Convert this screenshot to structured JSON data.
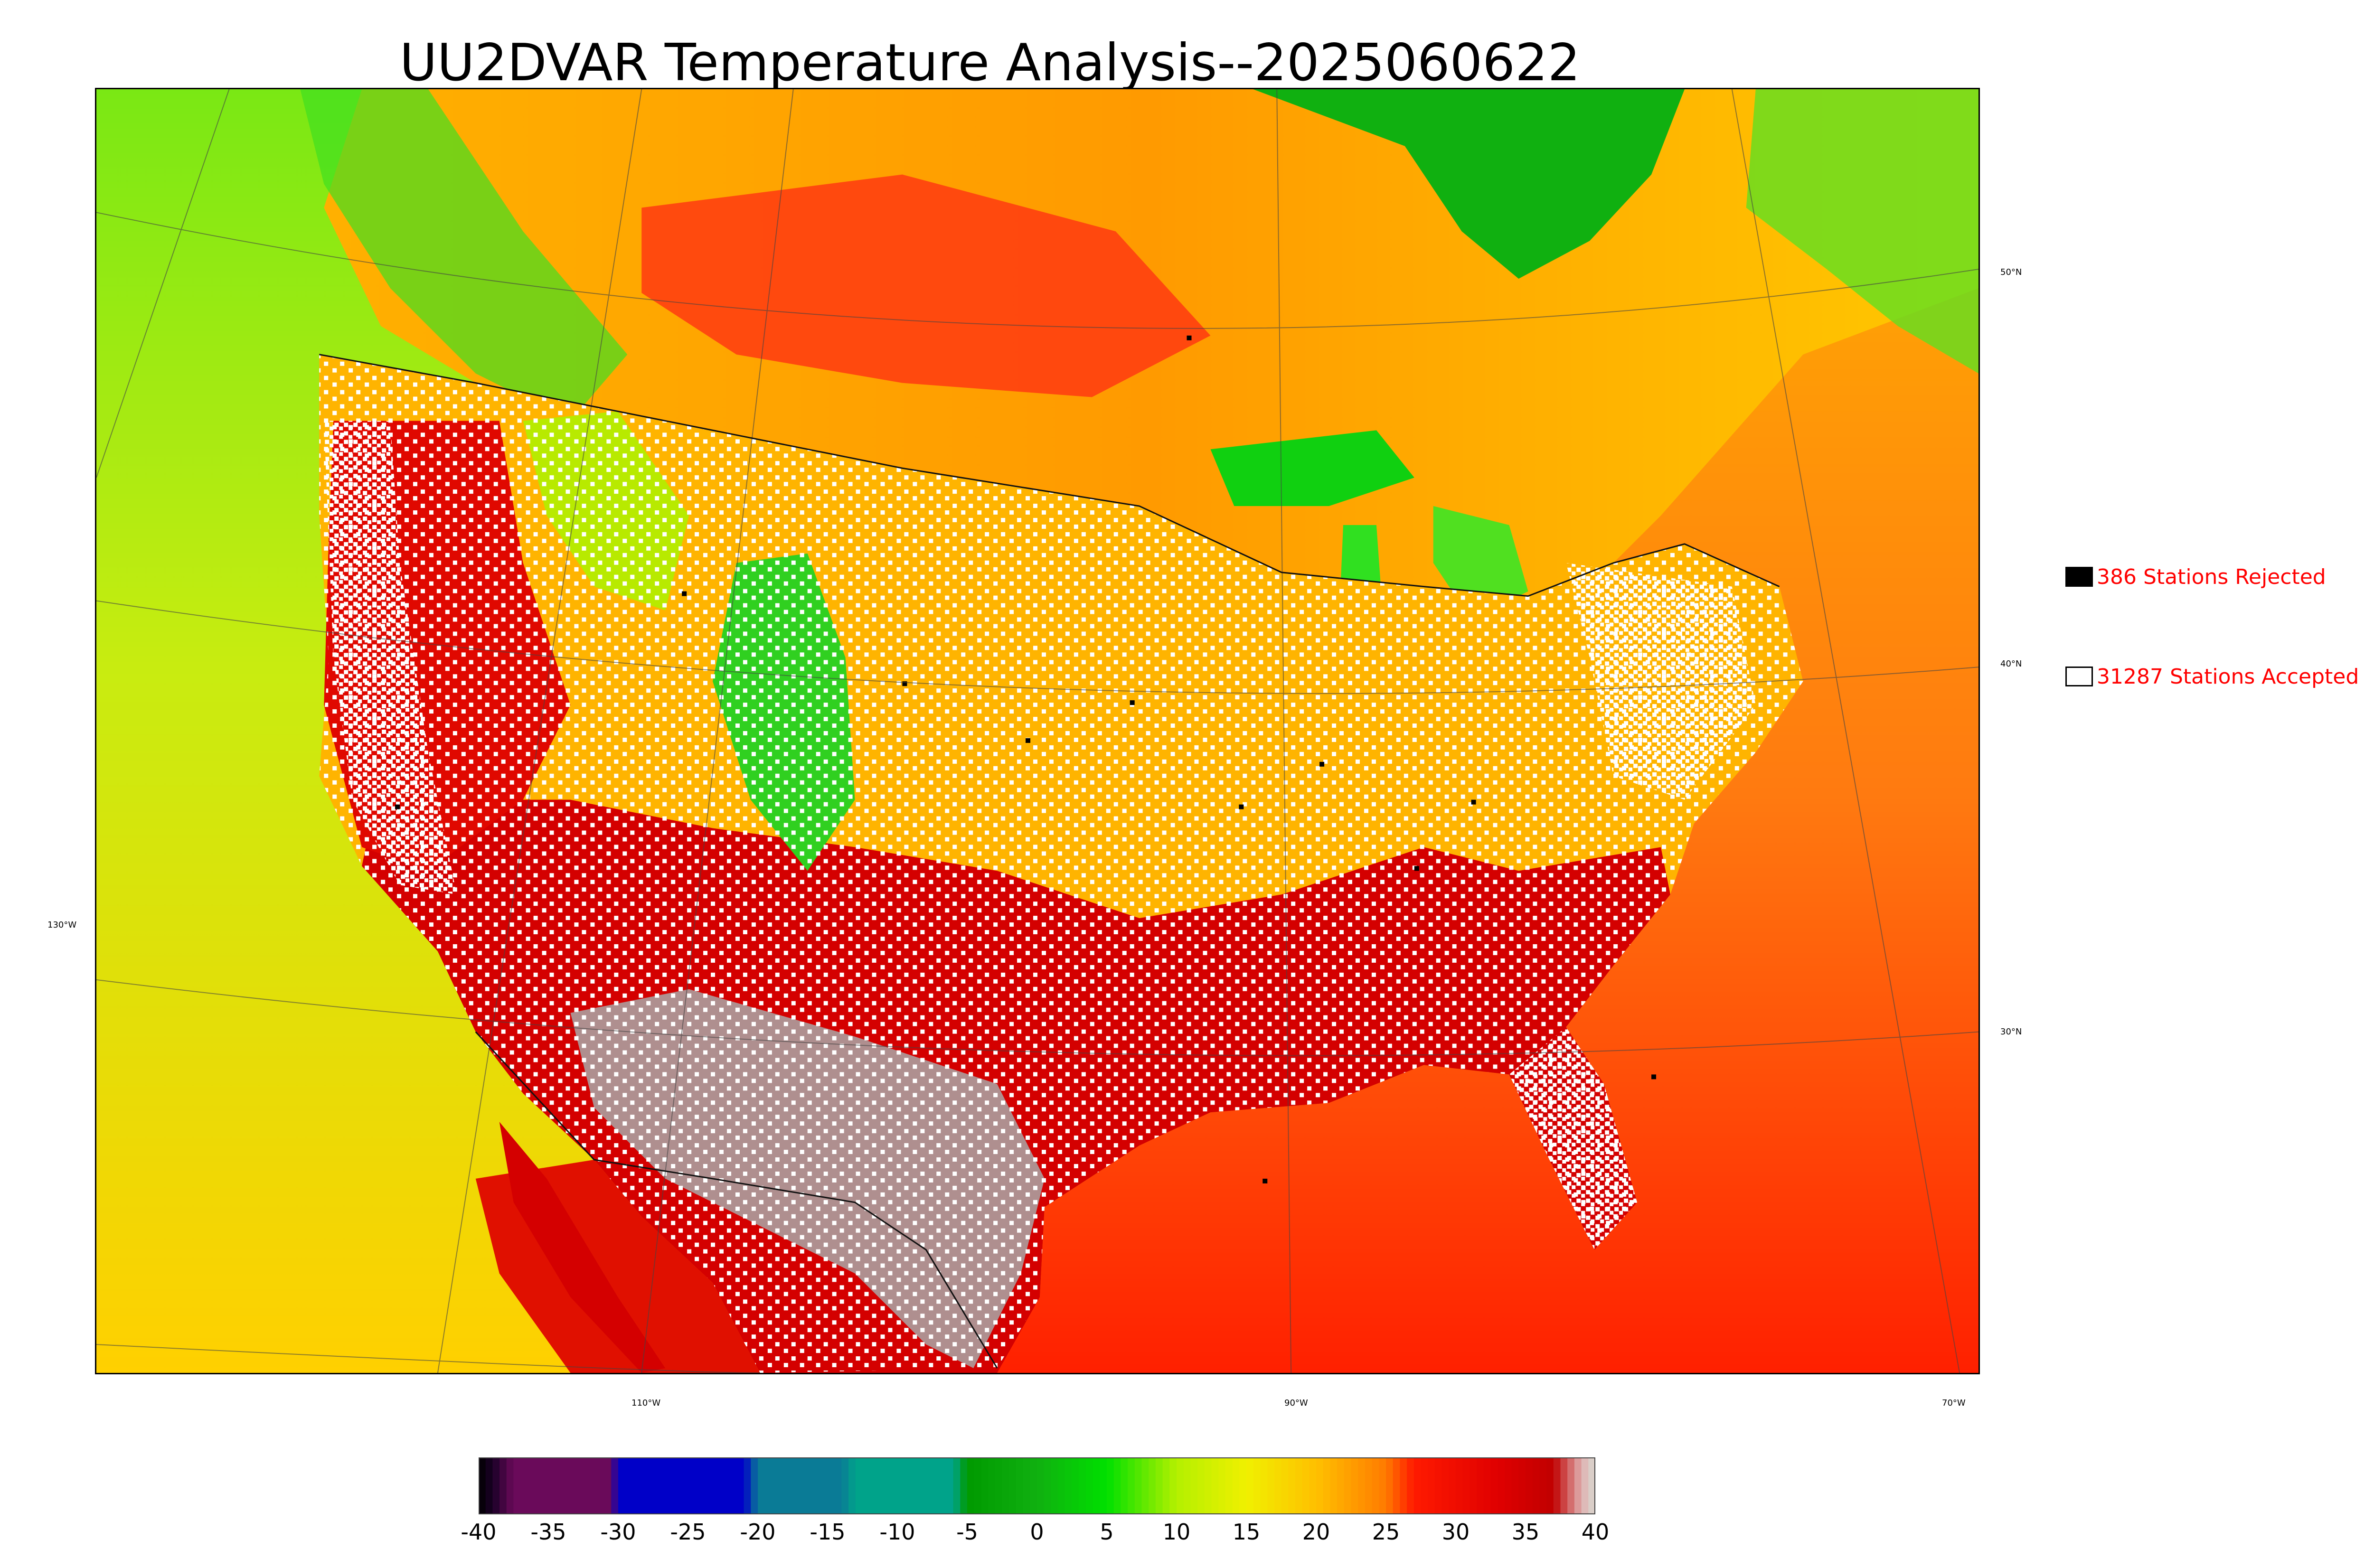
{
  "title": "UU2DVAR Temperature Analysis--2025060622",
  "map": {
    "longitude_labels": [
      "110°W",
      "90°W",
      "70°W"
    ],
    "latitude_labels": [
      "50°N",
      "40°N",
      "30°N"
    ],
    "west_label": "130°W",
    "colors": {
      "ocean_pacific": "#c8ec10",
      "ocean_atlantic": "#ff8a14",
      "gulf": "#ff2a00",
      "canada_north": "#ffb400",
      "hudson_bay": "#10b010",
      "hot_south": "#d40000",
      "mountains_green": "#30e020",
      "high_desert_gray": "#a8a8a8"
    }
  },
  "legend": {
    "rejected": {
      "label": "386 Stations Rejected",
      "swatch": "#000000"
    },
    "accepted": {
      "label": "31287 Stations Accepted",
      "swatch": "#ffffff"
    }
  },
  "colorbar": {
    "ticks": [
      "-40",
      "-35",
      "-30",
      "-25",
      "-20",
      "-15",
      "-10",
      "-5",
      "0",
      "5",
      "10",
      "15",
      "20",
      "25",
      "30",
      "35",
      "40"
    ],
    "range": [
      -40,
      40
    ],
    "stops": [
      {
        "v": -40,
        "c": "#000000"
      },
      {
        "v": -39,
        "c": "#1a0026"
      },
      {
        "v": -37.5,
        "c": "#6a0a5a"
      },
      {
        "v": -30.5,
        "c": "#6a0a5a"
      },
      {
        "v": -30,
        "c": "#0000c8"
      },
      {
        "v": -21,
        "c": "#0000c8"
      },
      {
        "v": -20,
        "c": "#0a7b96"
      },
      {
        "v": -14,
        "c": "#0a7b96"
      },
      {
        "v": -13,
        "c": "#00a38a"
      },
      {
        "v": -6,
        "c": "#00a38a"
      },
      {
        "v": -5,
        "c": "#009a00"
      },
      {
        "v": 0,
        "c": "#10b010"
      },
      {
        "v": 5,
        "c": "#00e000"
      },
      {
        "v": 10,
        "c": "#b4f000"
      },
      {
        "v": 15,
        "c": "#f0f000"
      },
      {
        "v": 20,
        "c": "#ffc000"
      },
      {
        "v": 25,
        "c": "#ff7a00"
      },
      {
        "v": 27,
        "c": "#ff1a00"
      },
      {
        "v": 33,
        "c": "#e00000"
      },
      {
        "v": 37,
        "c": "#c00000"
      },
      {
        "v": 39,
        "c": "#e0b0b0"
      },
      {
        "v": 40,
        "c": "#d8d8d0"
      }
    ]
  }
}
